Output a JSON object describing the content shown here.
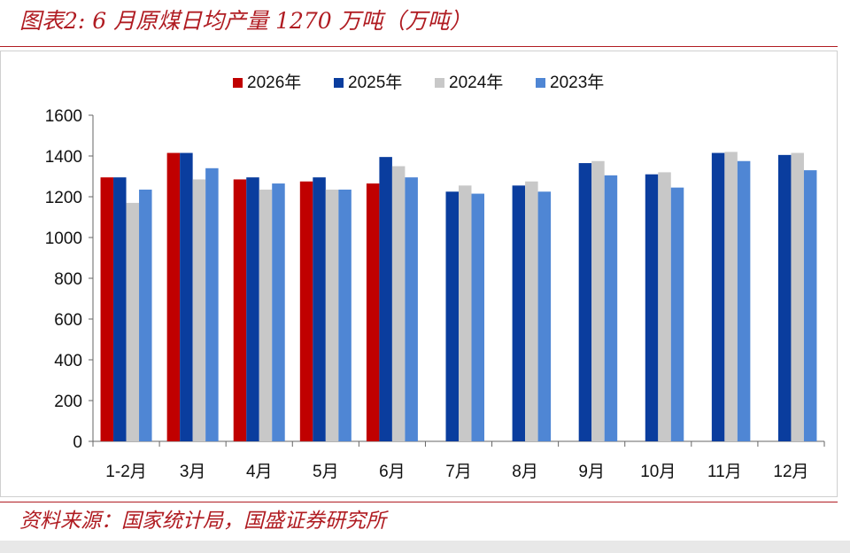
{
  "header": {
    "title": "图表2:  6 月原煤日均产量 1270 万吨（万吨）"
  },
  "footer": {
    "source": "资料来源：国家统计局，国盛证券研究所"
  },
  "chart_data": {
    "type": "bar",
    "title": "图表2:  6 月原煤日均产量 1270 万吨（万吨）",
    "xlabel": "",
    "ylabel": "",
    "ylim": [
      0,
      1600
    ],
    "yticks": [
      0,
      200,
      400,
      600,
      800,
      1000,
      1200,
      1400,
      1600
    ],
    "grid": false,
    "legend": "top-center",
    "categories": [
      "1-2月",
      "3月",
      "4月",
      "5月",
      "6月",
      "7月",
      "8月",
      "9月",
      "10月",
      "11月",
      "12月"
    ],
    "series": [
      {
        "name": "2026年",
        "color": "#c00000",
        "values": [
          1295,
          1415,
          1285,
          1275,
          1265,
          null,
          null,
          null,
          null,
          null,
          null
        ]
      },
      {
        "name": "2025年",
        "color": "#0a3d9e",
        "values": [
          1295,
          1415,
          1295,
          1295,
          1395,
          1225,
          1255,
          1365,
          1310,
          1415,
          1405
        ]
      },
      {
        "name": "2024年",
        "color": "#c8c8c8",
        "values": [
          1170,
          1285,
          1235,
          1235,
          1350,
          1255,
          1275,
          1375,
          1320,
          1420,
          1415
        ]
      },
      {
        "name": "2023年",
        "color": "#4f86d4",
        "values": [
          1235,
          1340,
          1265,
          1235,
          1295,
          1215,
          1225,
          1305,
          1245,
          1375,
          1330
        ]
      }
    ]
  }
}
